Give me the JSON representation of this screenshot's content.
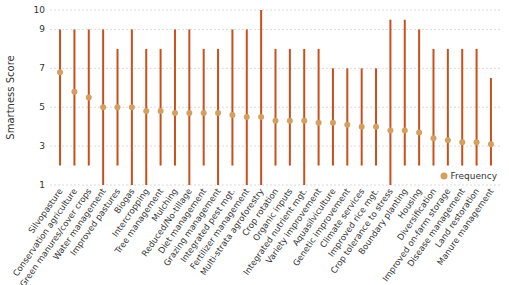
{
  "chart_data": {
    "type": "range",
    "y_label": "Smartness Score",
    "categories": [
      "Silvopasture",
      "Conservation agriculture",
      "Green manures/cover crops",
      "Water management",
      "Improved pastures",
      "Biogas",
      "Intercropping",
      "Tree management",
      "Mulching",
      "Reduced/No-tillage",
      "Diet management",
      "Grazing management",
      "Integrated pest mgt.",
      "Fertilizer management",
      "Multi-strata agroforestry",
      "Crop rotation",
      "Organic inputs",
      "Integrated nutrient mgt.",
      "Variety improvement",
      "Aquasilviculture",
      "Genetic improvement",
      "Climate services",
      "Improved rice mgt.",
      "Crop tolerance to stress",
      "Boundary planting",
      "Housing",
      "Diversification",
      "Improved on-farm storage",
      "Disease management",
      "Land restoration",
      "Manure management"
    ],
    "low": [
      2,
      2,
      2,
      1,
      2,
      1,
      1,
      2,
      2,
      1,
      2,
      1,
      2,
      1,
      1,
      2,
      2,
      1,
      2,
      2,
      2,
      2,
      2,
      1,
      2,
      2,
      2,
      2,
      2,
      2,
      2
    ],
    "high": [
      9,
      9,
      9,
      9,
      8,
      9,
      8,
      8,
      9,
      9,
      8,
      8,
      9,
      9,
      10,
      8,
      8,
      8,
      8,
      7,
      7,
      7,
      7,
      9.5,
      9.5,
      9,
      8,
      8,
      8,
      8,
      6.5
    ],
    "color": "#c8501a",
    "series": [
      {
        "name": "Frequency",
        "color": "#d4a060",
        "marker": "circle",
        "values": [
          6.8,
          5.8,
          5.5,
          5.0,
          5.0,
          5.0,
          4.8,
          4.8,
          4.7,
          4.7,
          4.7,
          4.7,
          4.6,
          4.5,
          4.5,
          4.3,
          4.3,
          4.3,
          4.2,
          4.2,
          4.1,
          4.0,
          4.0,
          3.8,
          3.8,
          3.7,
          3.4,
          3.3,
          3.2,
          3.2,
          3.1
        ]
      }
    ],
    "ylim": [
      1,
      10
    ],
    "yticks": [
      1,
      3,
      5,
      7,
      9,
      10
    ],
    "grid": true,
    "legend": "lower right"
  }
}
